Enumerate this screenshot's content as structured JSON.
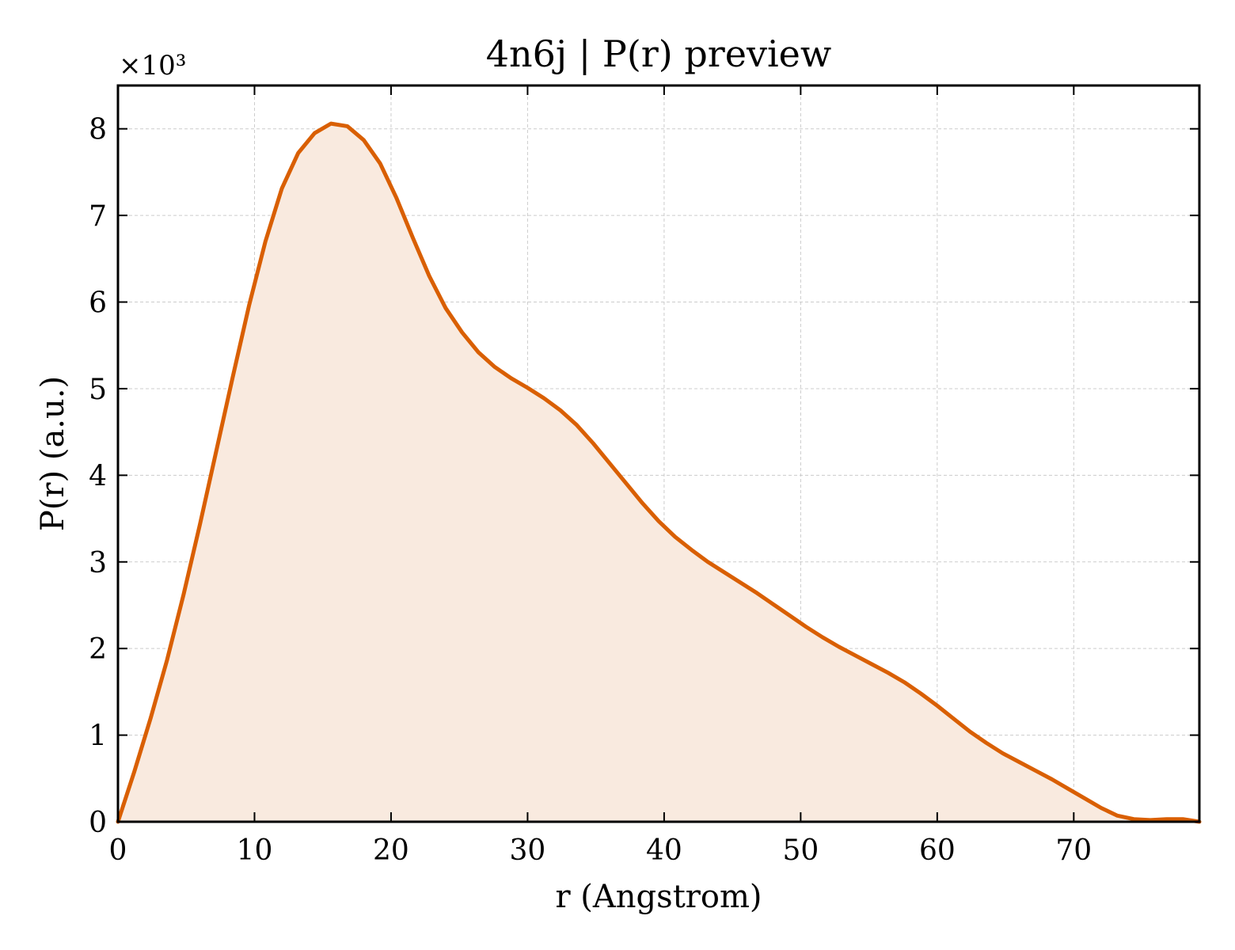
{
  "chart_data": {
    "type": "area",
    "title": "4n6j | P(r) preview",
    "xlabel": "r (Angstrom)",
    "ylabel": "P(r) (a.u.)",
    "y_multiplier": "×10³",
    "xlim": [
      0,
      79.2
    ],
    "ylim": [
      0,
      8.5
    ],
    "x_ticks": [
      0,
      10,
      20,
      30,
      40,
      50,
      60,
      70
    ],
    "y_ticks": [
      0,
      1,
      2,
      3,
      4,
      5,
      6,
      7,
      8
    ],
    "grid": true,
    "colors": {
      "line": "#d95f02",
      "fill": "#f9eadf",
      "grid": "#cccccc",
      "frame": "#000000"
    },
    "series": [
      {
        "x": [
          0,
          1.2,
          2.4,
          3.6,
          4.8,
          6.0,
          7.2,
          8.4,
          9.6,
          10.8,
          12.0,
          13.2,
          14.4,
          15.6,
          16.8,
          18.0,
          19.2,
          20.4,
          21.6,
          22.8,
          24.0,
          25.2,
          26.4,
          27.6,
          28.8,
          30.0,
          31.2,
          32.4,
          33.6,
          34.8,
          36.0,
          37.2,
          38.4,
          39.6,
          40.8,
          42.0,
          43.2,
          44.4,
          45.6,
          46.8,
          48.0,
          49.2,
          50.4,
          51.6,
          52.8,
          54.0,
          55.2,
          56.4,
          57.6,
          58.8,
          60.0,
          61.2,
          62.4,
          63.6,
          64.8,
          66.0,
          67.2,
          68.4,
          69.6,
          70.8,
          72.0,
          73.2,
          74.4,
          75.6,
          76.8,
          78.0,
          79.2
        ],
        "values": [
          0,
          0.58,
          1.2,
          1.87,
          2.62,
          3.43,
          4.28,
          5.13,
          5.96,
          6.7,
          7.31,
          7.72,
          7.95,
          8.06,
          8.03,
          7.87,
          7.6,
          7.2,
          6.74,
          6.3,
          5.93,
          5.65,
          5.42,
          5.25,
          5.12,
          5.01,
          4.89,
          4.75,
          4.58,
          4.37,
          4.14,
          3.91,
          3.68,
          3.47,
          3.29,
          3.14,
          3.0,
          2.88,
          2.76,
          2.64,
          2.51,
          2.38,
          2.25,
          2.13,
          2.02,
          1.92,
          1.82,
          1.72,
          1.61,
          1.48,
          1.34,
          1.19,
          1.04,
          0.91,
          0.79,
          0.69,
          0.59,
          0.49,
          0.38,
          0.27,
          0.16,
          0.07,
          0.03,
          0.02,
          0.03,
          0.03,
          0.0
        ]
      }
    ]
  }
}
